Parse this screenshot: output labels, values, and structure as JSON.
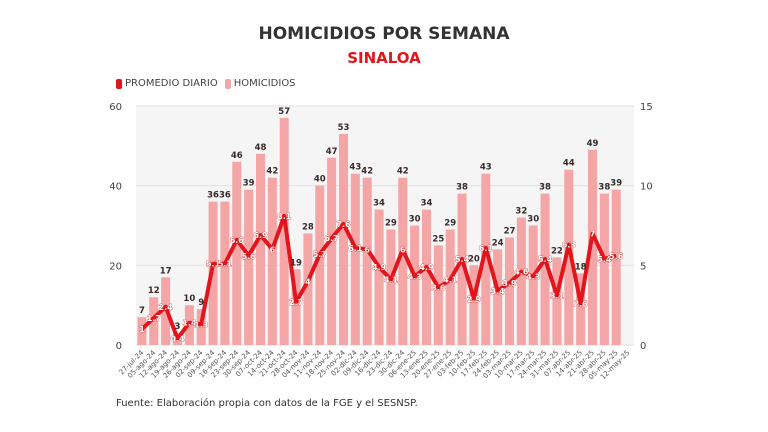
{
  "chart_data": {
    "type": "bar+line",
    "title": "HOMICIDIOS POR SEMANA",
    "subtitle": "SINALOA",
    "legend_position": "top-left",
    "grid": true,
    "categories": [
      "27-jul-24",
      "05-ago-24",
      "12-ago-24",
      "19-ago-24",
      "26-ago-24",
      "02-sep-24",
      "09-sep-24",
      "16-sep-24",
      "23-sep-24",
      "30-sep-24",
      "07-oct-24",
      "14-oct-24",
      "21-oct-24",
      "28-oct-24",
      "04-nov-24",
      "11-nov-24",
      "18-nov-24",
      "25-nov-24",
      "02-dic-24",
      "09-dic-24",
      "16-dic-24",
      "23-dic-24",
      "30-dic-24",
      "06-ene-25",
      "13-ene-25",
      "20-ene-25",
      "27-ene-25",
      "03-feb-25",
      "10-feb-25",
      "17-feb-25",
      "24-feb-25",
      "03-mar-25",
      "10-mar-25",
      "17-mar-25",
      "24-mar-25",
      "31-mar-25",
      "07-abr-25",
      "14-abr-25",
      "21-abr-25",
      "28-abr-25",
      "05-may-25",
      "12-may-25"
    ],
    "series": [
      {
        "name": "HOMICIDIOS",
        "type": "bar",
        "axis": "left",
        "color": "#f4a6a6",
        "values": [
          7,
          12,
          17,
          3,
          10,
          9,
          36,
          36,
          46,
          39,
          48,
          42,
          57,
          19,
          28,
          40,
          47,
          53,
          43,
          42,
          34,
          29,
          42,
          30,
          34,
          25,
          29,
          38,
          20,
          43,
          24,
          27,
          32,
          30,
          38,
          22,
          44,
          18,
          49,
          38,
          39,
          null
        ]
      },
      {
        "name": "PROMEDIO DIARIO",
        "type": "line",
        "axis": "right",
        "color": "#e3141b",
        "values": [
          1,
          1.7,
          2.4,
          0.4,
          1.4,
          1.3,
          5.1,
          5.1,
          6.6,
          5.6,
          6.9,
          6,
          8.1,
          2.7,
          4,
          5.7,
          6.7,
          7.6,
          6.1,
          6,
          4.9,
          4.1,
          6,
          4.3,
          4.9,
          3.6,
          4.1,
          5.4,
          2.9,
          6.1,
          3.4,
          3.9,
          4.6,
          4.3,
          5.4,
          3.1,
          6.3,
          2.6,
          7,
          5.4,
          5.6,
          null
        ]
      }
    ],
    "y_left": {
      "range": [
        0,
        60
      ],
      "ticks": [
        0,
        20,
        40,
        60
      ]
    },
    "y_right": {
      "range": [
        0,
        15
      ],
      "ticks": [
        0,
        5,
        10,
        15
      ]
    }
  },
  "source": "Fuente: Elaboración propia con datos de la FGE y el SESNSP."
}
